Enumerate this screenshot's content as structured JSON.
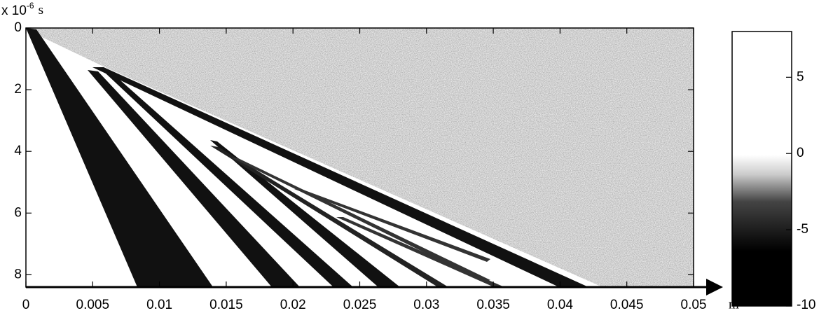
{
  "chart_data": {
    "type": "heatmap",
    "y_label": {
      "base": "x 10",
      "exponent": "-6",
      "unit": "s"
    },
    "x_label": "m",
    "xlim": [
      0,
      0.05
    ],
    "xticks": [
      0,
      0.005,
      0.01,
      0.015,
      0.02,
      0.025,
      0.03,
      0.035,
      0.04,
      0.045,
      0.05
    ],
    "ylim": [
      0,
      8.4
    ],
    "yticks": [
      0,
      2,
      4,
      6,
      8
    ],
    "colorbar": {
      "lim": [
        -10,
        8
      ],
      "ticks": [
        5,
        0,
        -5,
        -10
      ]
    }
  }
}
